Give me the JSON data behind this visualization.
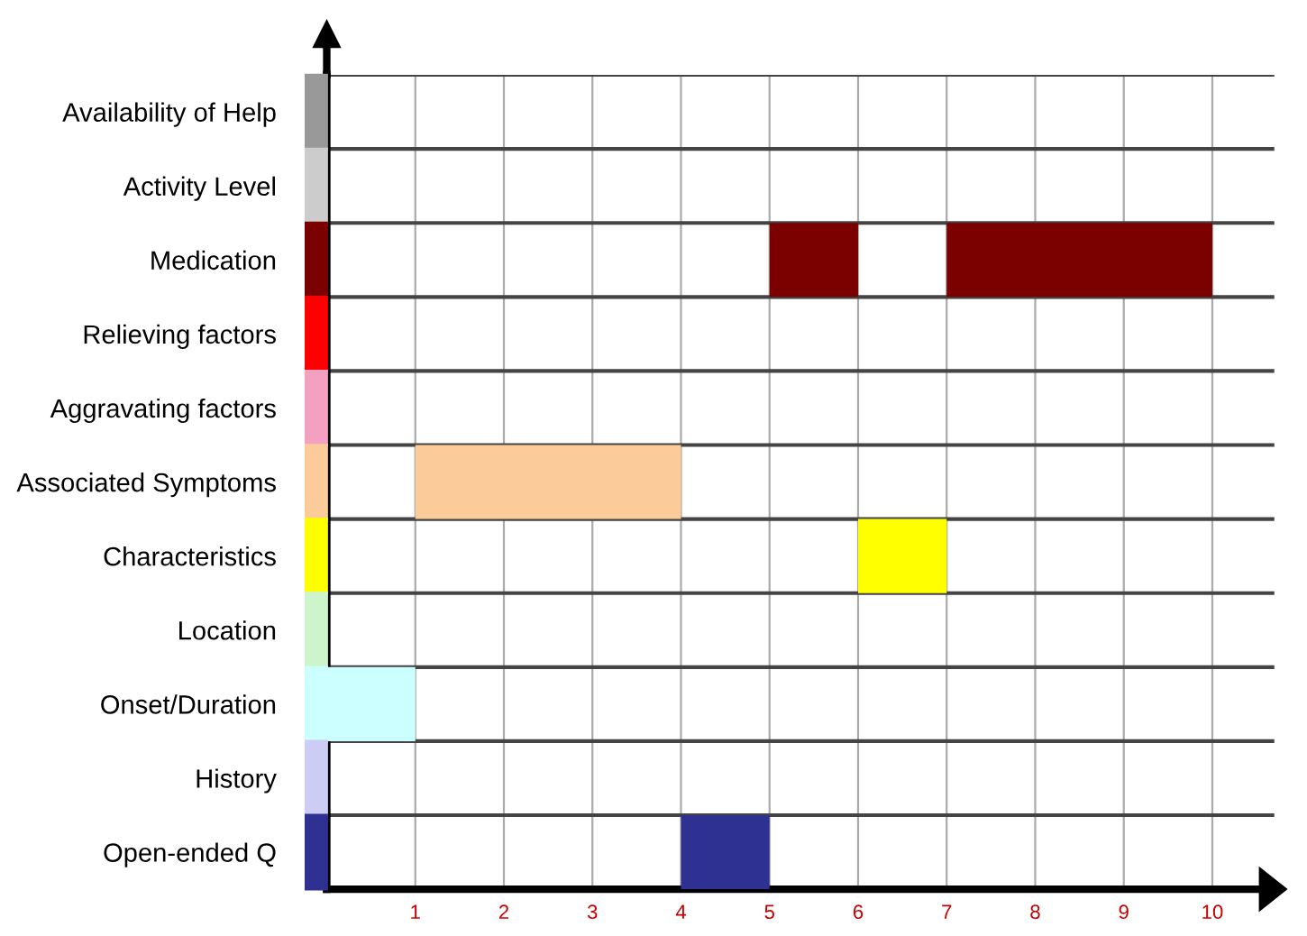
{
  "chart_data": {
    "type": "bar",
    "orientation": "horizontal",
    "categories": [
      "Availability of Help",
      "Activity Level",
      "Medication",
      "Relieving factors",
      "Aggravating factors",
      "Associated Symptoms",
      "Characteristics",
      "Location",
      "Onset/Duration",
      "History",
      "Open-ended Q"
    ],
    "series": [
      {
        "values": [
          null,
          null,
          1,
          null,
          null,
          3,
          1,
          null,
          1,
          null,
          1
        ],
        "base": [
          null,
          null,
          5,
          null,
          null,
          1,
          6,
          null,
          0,
          null,
          4
        ],
        "colors": [
          "#999999",
          "#cccccc",
          "#7b0000",
          "#ff0000",
          "#f4a0c0",
          "#fccb9a",
          "#ffff00",
          "#ccf5cc",
          "#ccffff",
          "#ccccf5",
          "#2e3192"
        ]
      },
      {
        "values": [
          null,
          null,
          3,
          null,
          null,
          null,
          null,
          null,
          null,
          null,
          null
        ],
        "base": [
          null,
          null,
          7,
          null,
          null,
          null,
          null,
          null,
          null,
          null,
          null
        ],
        "colors": [
          "#999999",
          "#cccccc",
          "#7b0000",
          "#ff0000",
          "#f4a0c0",
          "#fccb9a",
          "#ffff00",
          "#ccf5cc",
          "#ccffff",
          "#ccccf5",
          "#2e3192"
        ]
      }
    ],
    "xlim": [
      0,
      10.7
    ],
    "xticks": [
      1,
      2,
      3,
      4,
      5,
      6,
      7,
      8,
      9,
      10
    ],
    "grid": true,
    "legend": false
  }
}
